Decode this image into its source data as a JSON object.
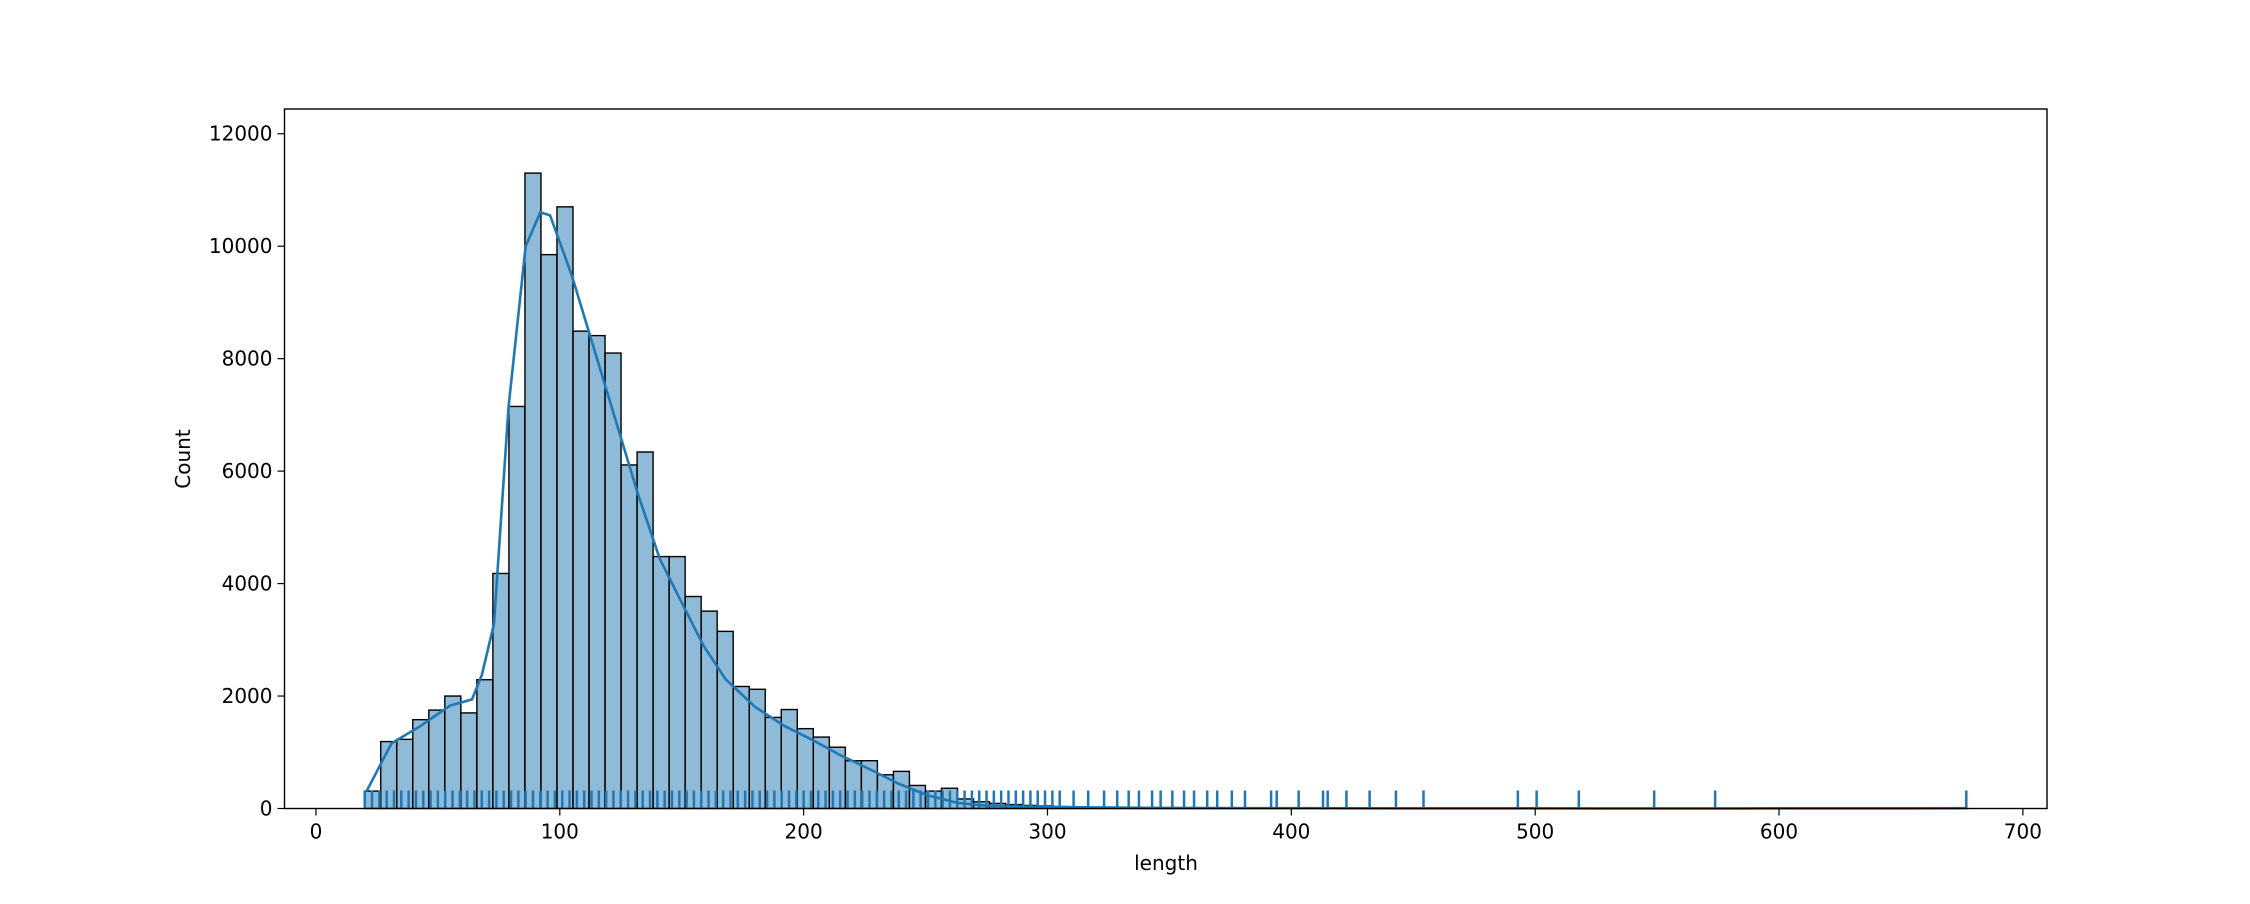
{
  "chart_data": {
    "type": "histogram",
    "x_label": "length",
    "y_label": "Count",
    "color": "rgba(31,119,180,0.5)",
    "edge_color": "#000000",
    "xlim": [
      -12.9,
      709.9
    ],
    "xticks": [
      0,
      100,
      200,
      300,
      400,
      500,
      600,
      700
    ],
    "ylim": [
      0,
      12440
    ],
    "yticks": [
      0,
      2000,
      4000,
      6000,
      8000,
      10000,
      12000
    ],
    "bins": [
      20,
      26.57,
      33.14,
      39.71,
      46.28,
      52.85,
      59.42,
      65.99,
      72.56,
      79.13,
      85.7,
      92.27,
      98.84,
      105.41,
      111.98,
      118.55,
      125.12,
      131.69,
      138.26,
      144.83,
      151.4,
      157.97,
      164.54,
      171.11,
      177.68,
      184.25,
      190.82,
      197.39,
      203.96,
      210.53,
      217.1,
      223.67,
      230.24,
      236.81,
      243.38,
      249.95,
      256.52,
      263.09,
      269.66,
      276.23,
      282.8,
      289.37,
      295.94,
      302.51,
      309.08,
      315.65,
      322.22,
      328.79,
      335.36,
      341.93,
      348.5,
      355.07,
      361.64,
      368.21,
      374.78,
      381.35,
      387.92,
      394.49,
      401.06,
      407.63,
      414.2,
      420.77,
      427.34,
      433.91,
      440.48,
      447.05,
      453.62,
      460.19,
      466.76,
      473.33,
      479.9,
      486.47,
      493.04,
      499.61,
      506.18,
      512.75,
      519.32,
      525.89,
      532.46,
      539.03,
      545.6,
      552.17,
      558.74,
      565.31,
      571.88,
      578.45,
      585.02,
      591.59,
      598.16,
      604.73,
      611.3,
      617.87,
      624.44,
      631.01,
      637.58,
      644.15,
      650.72,
      657.29,
      663.86,
      670.43,
      677
    ],
    "values": [
      310,
      1190,
      1230,
      1580,
      1750,
      2000,
      1700,
      2290,
      4180,
      7150,
      11300,
      9850,
      10700,
      8490,
      8410,
      8100,
      6110,
      6340,
      4480,
      4480,
      3770,
      3510,
      3150,
      2170,
      2120,
      1620,
      1760,
      1420,
      1270,
      1090,
      850,
      850,
      600,
      660,
      410,
      310,
      360,
      170,
      120,
      90,
      70,
      55,
      45,
      35,
      28,
      22,
      18,
      15,
      12,
      10,
      9,
      8,
      6,
      5,
      5,
      4,
      3,
      3,
      2,
      2,
      2,
      2,
      1,
      1,
      1,
      1,
      1,
      1,
      0,
      1,
      0,
      0,
      1,
      1,
      0,
      0,
      1,
      0,
      0,
      0,
      0,
      0,
      1,
      0,
      0,
      0,
      1,
      0,
      0,
      0,
      0,
      0,
      0,
      0,
      0,
      0,
      0,
      0,
      0,
      1
    ],
    "kde": {
      "color": "#1f77b4",
      "x": [
        20.8,
        31,
        43,
        55,
        64,
        68,
        73,
        79,
        86,
        92,
        96,
        105,
        114,
        123,
        132,
        141,
        150,
        159,
        168,
        180,
        192,
        204,
        215,
        227,
        239,
        251,
        263,
        275,
        299,
        346,
        406,
        465,
        525,
        585,
        677
      ],
      "values": [
        310,
        1160,
        1470,
        1830,
        1940,
        2370,
        3280,
        7150,
        10000,
        10600,
        10550,
        9470,
        8180,
        6890,
        5600,
        4440,
        3660,
        2890,
        2300,
        1810,
        1470,
        1210,
        950,
        700,
        440,
        230,
        100,
        50,
        25,
        10,
        5,
        3,
        2,
        2,
        5
      ]
    },
    "rug": {
      "color": "#1f77b4",
      "values": [
        20,
        23,
        26,
        29,
        32,
        35,
        38,
        41,
        44,
        47,
        50,
        53,
        56,
        59,
        62,
        65,
        68,
        71,
        74,
        77,
        80,
        83,
        86,
        89,
        92,
        95,
        98,
        101,
        104,
        107,
        110,
        113,
        116,
        119,
        122,
        125,
        128,
        131,
        134,
        137,
        140,
        143,
        146,
        149,
        152,
        155,
        158,
        161,
        164,
        167,
        170,
        173,
        176,
        179,
        182,
        185,
        188,
        191,
        194,
        197,
        200,
        203,
        206,
        209,
        212,
        215,
        218,
        221,
        224,
        227,
        230,
        233,
        236,
        239,
        242,
        245,
        248,
        251,
        254,
        257,
        260,
        263,
        266,
        269,
        272,
        275,
        278,
        281,
        284,
        287,
        290,
        293,
        296,
        299,
        302,
        305,
        310.7,
        316.7,
        323.2,
        328.6,
        333.3,
        337.5,
        342.9,
        346.4,
        351.2,
        356,
        360.1,
        365.5,
        369.6,
        375.6,
        381,
        391.7,
        394,
        403,
        413,
        414.9,
        422.6,
        432.1,
        442.9,
        454.2,
        492.9,
        500.6,
        517.9,
        548.8,
        573.8,
        676.8
      ]
    }
  }
}
